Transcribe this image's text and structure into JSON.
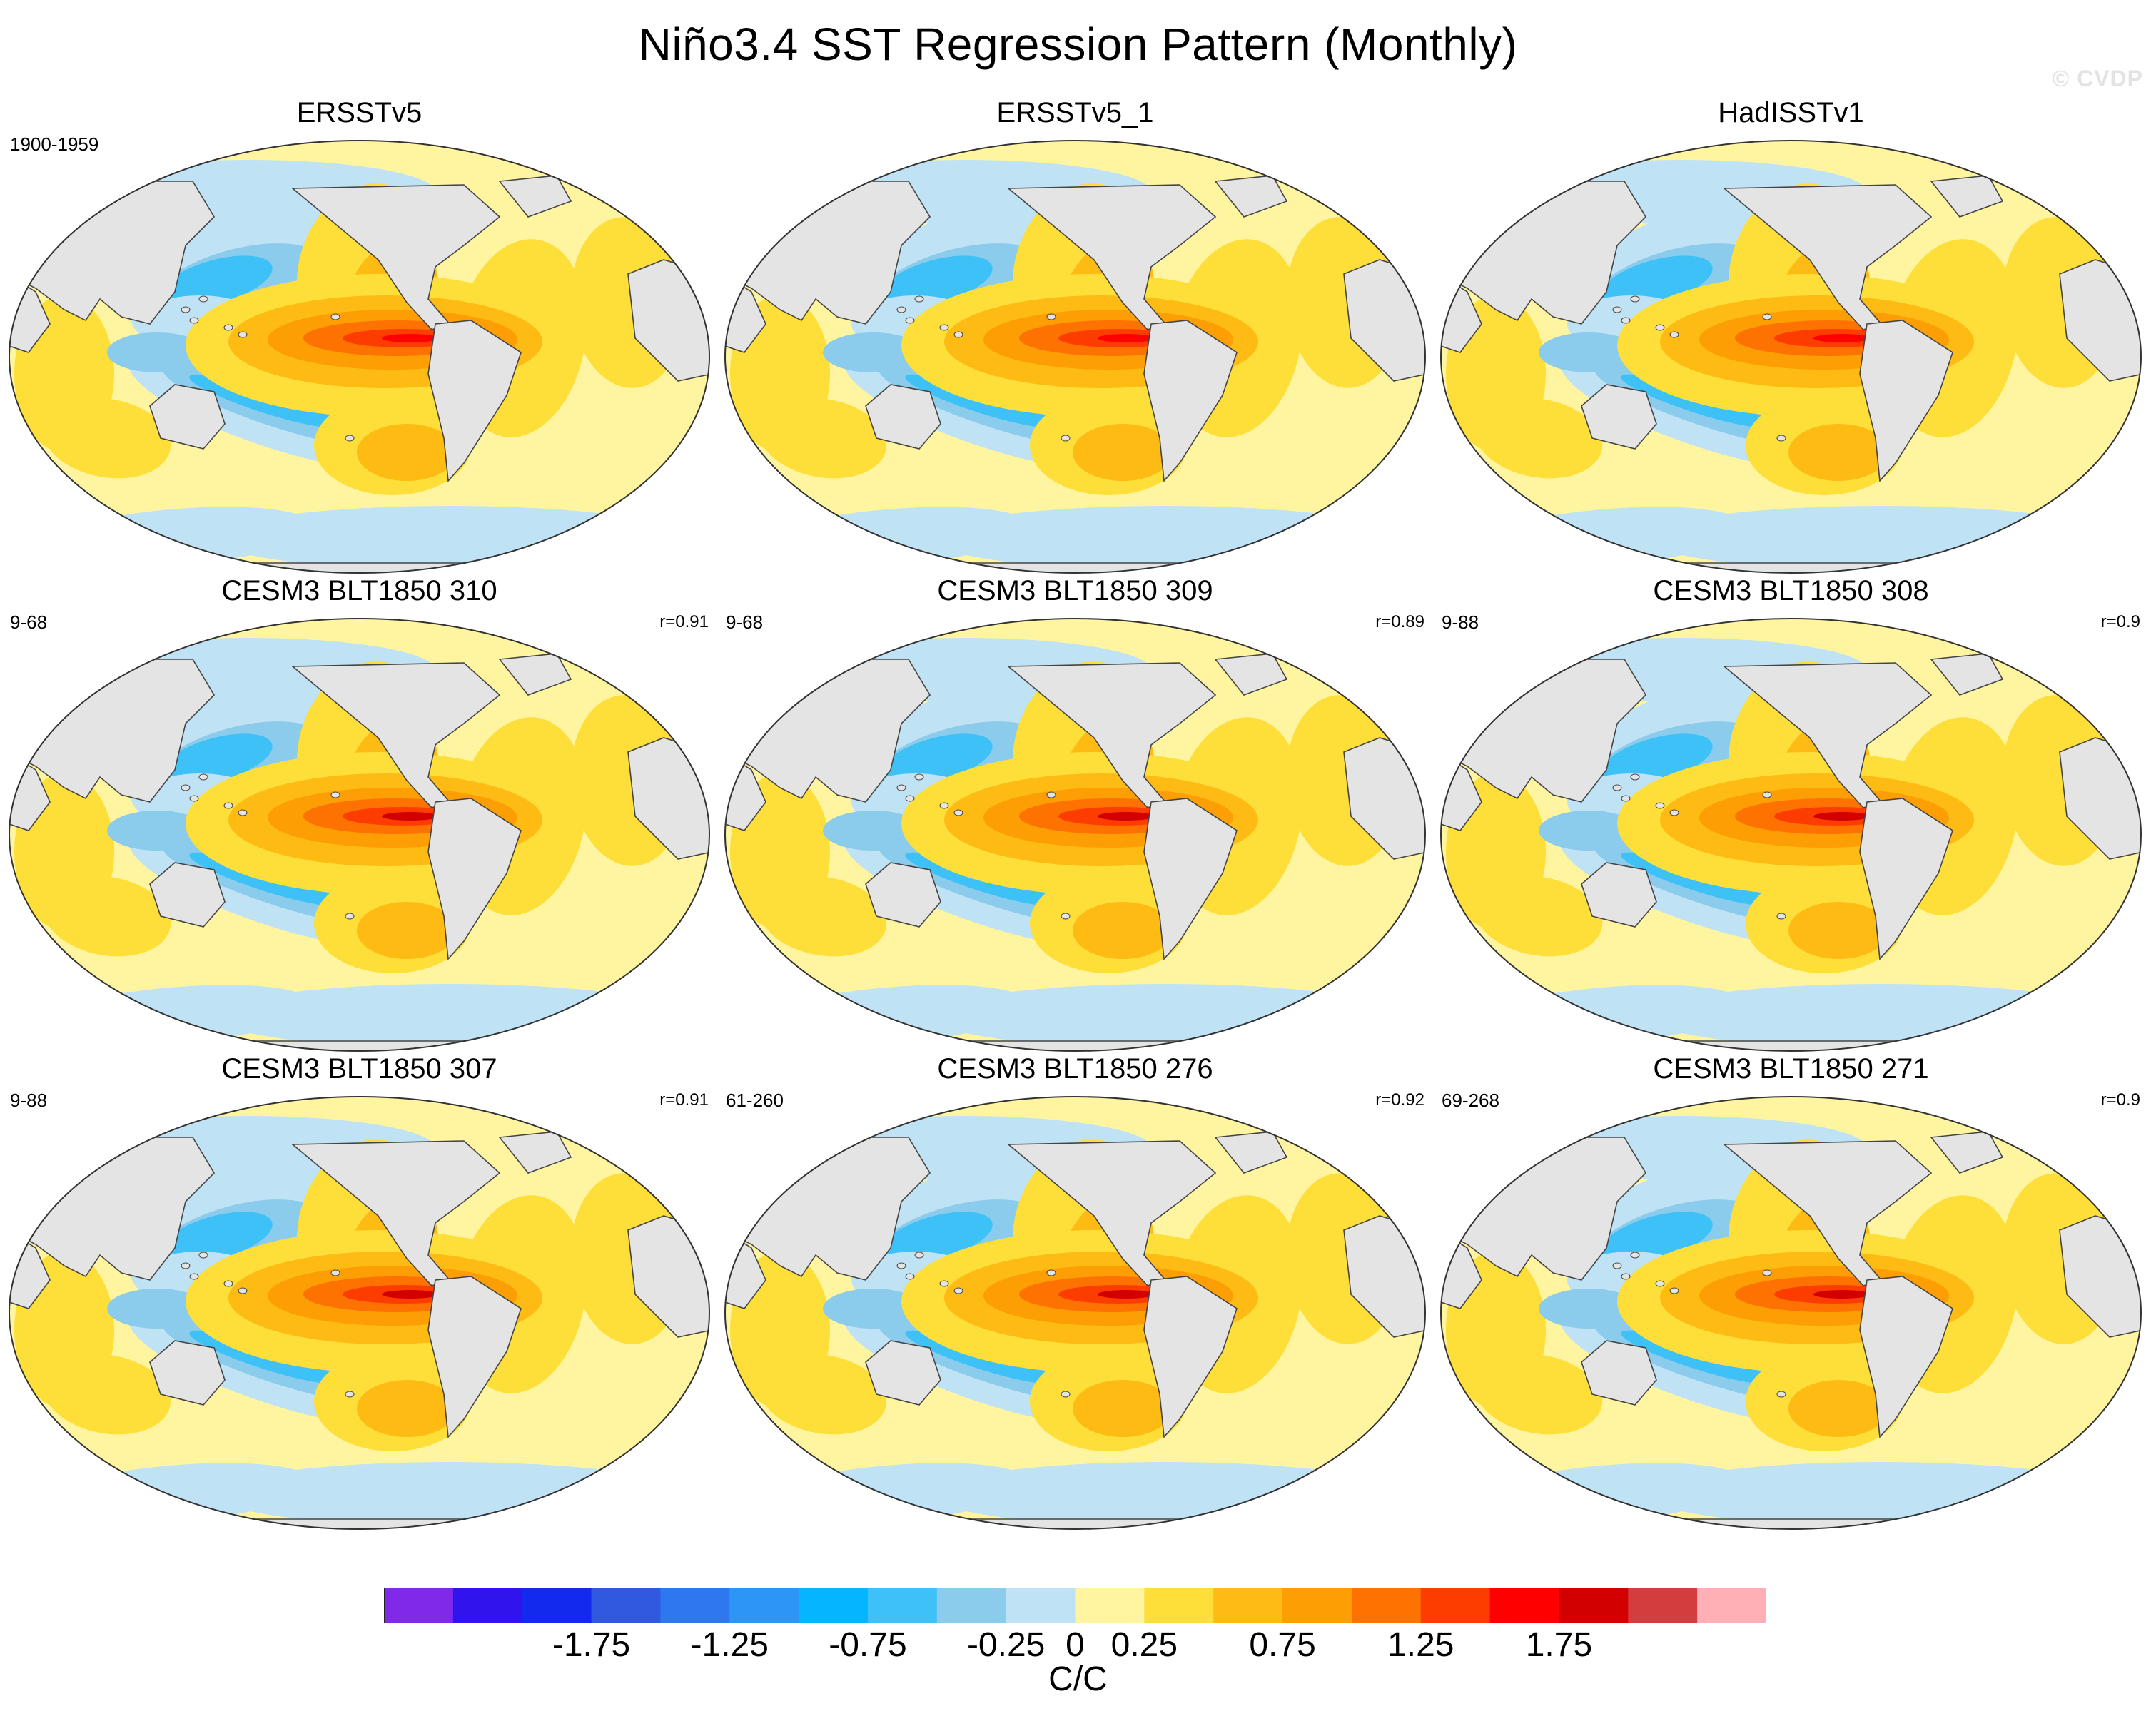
{
  "title": "Niño3.4 SST Regression Pattern (Monthly)",
  "watermark": "© CVDP",
  "units": "C/C",
  "colors": {
    "land": "#e4e4e4",
    "coast": "#444444",
    "ocean_base": "#fff5a0"
  },
  "colorbar": {
    "levels": [
      -2.25,
      -2.0,
      -1.75,
      -1.5,
      -1.25,
      -1.0,
      -0.75,
      -0.5,
      -0.25,
      0,
      0.25,
      0.5,
      0.75,
      1.0,
      1.25,
      1.5,
      1.75,
      2.0,
      2.25
    ],
    "colors": [
      "#8129e8",
      "#3113ee",
      "#1429ee",
      "#3159e0",
      "#2e77ee",
      "#2d95f5",
      "#06b5ff",
      "#3ec1f6",
      "#8bcbec",
      "#bfe2f5",
      "#fff5a0",
      "#fede38",
      "#fdbb13",
      "#fd9e05",
      "#fd7200",
      "#fd3d00",
      "#ff0000",
      "#d30000",
      "#d43d3d",
      "#ffb0b6"
    ],
    "labels": [
      "-1.75",
      "-1.25",
      "-0.75",
      "-0.25",
      "0",
      "0.25",
      "0.75",
      "1.25",
      "1.75"
    ]
  },
  "chart_data": [
    {
      "type": "heatmap",
      "title": "ERSSTv5",
      "period": "1900-1959",
      "pattern_correlation": null
    },
    {
      "type": "heatmap",
      "title": "ERSSTv5_1",
      "period": "",
      "pattern_correlation": null
    },
    {
      "type": "heatmap",
      "title": "HadISSTv1",
      "period": "",
      "pattern_correlation": null
    },
    {
      "type": "heatmap",
      "title": "CESM3 BLT1850 310",
      "period": "9-68",
      "pattern_correlation": "r=0.91"
    },
    {
      "type": "heatmap",
      "title": "CESM3 BLT1850 309",
      "period": "9-68",
      "pattern_correlation": "r=0.89"
    },
    {
      "type": "heatmap",
      "title": "CESM3 BLT1850 308",
      "period": "9-88",
      "pattern_correlation": "r=0.9"
    },
    {
      "type": "heatmap",
      "title": "CESM3 BLT1850 307",
      "period": "9-88",
      "pattern_correlation": "r=0.91"
    },
    {
      "type": "heatmap",
      "title": "CESM3 BLT1850 276",
      "period": "61-260",
      "pattern_correlation": "r=0.92"
    },
    {
      "type": "heatmap",
      "title": "CESM3 BLT1850 271",
      "period": "69-268",
      "pattern_correlation": "r=0.9"
    }
  ]
}
